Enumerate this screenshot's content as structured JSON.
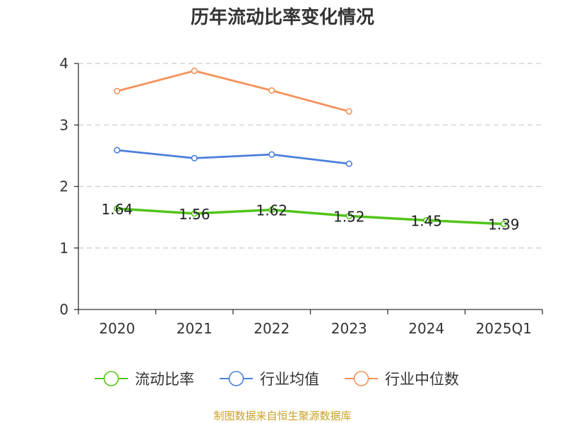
{
  "chart_data": {
    "type": "line",
    "title": "历年流动比率变化情况",
    "categories": [
      "2020",
      "2021",
      "2022",
      "2023",
      "2024",
      "2025Q1"
    ],
    "ylim": [
      0,
      4
    ],
    "yticks": [
      0,
      1,
      2,
      3,
      4
    ],
    "grid": true,
    "legend_position": "bottom",
    "series": [
      {
        "name": "流动比率",
        "color": "#52c41a",
        "values": [
          1.64,
          1.56,
          1.62,
          1.52,
          1.45,
          1.39
        ],
        "labels": [
          "1.64",
          "1.56",
          "1.62",
          "1.52",
          "1.45",
          "1.39"
        ],
        "show_labels": true
      },
      {
        "name": "行业均值",
        "color": "#4a7fdc",
        "values": [
          2.59,
          2.46,
          2.52,
          2.37,
          null,
          null
        ],
        "show_labels": false
      },
      {
        "name": "行业中位数",
        "color": "#f5925a",
        "values": [
          3.55,
          3.88,
          3.56,
          3.22,
          null,
          null
        ],
        "show_labels": false
      }
    ],
    "source": "制图数据来自恒生聚源数据库"
  }
}
